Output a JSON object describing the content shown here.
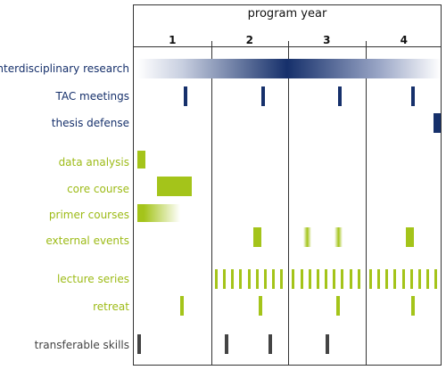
{
  "header": {
    "title": "program year",
    "years": [
      "1",
      "2",
      "3",
      "4"
    ]
  },
  "colors": {
    "navy": "#16306b",
    "green": "#a4c41a",
    "gray": "#444444"
  },
  "rows": [
    {
      "id": "interdisciplinary-research",
      "label": "interdisciplinary research",
      "group": "navy"
    },
    {
      "id": "tac-meetings",
      "label": "TAC meetings",
      "group": "navy"
    },
    {
      "id": "thesis-defense",
      "label": "thesis defense",
      "group": "navy"
    },
    {
      "id": "data-analysis",
      "label": "data analysis",
      "group": "green"
    },
    {
      "id": "core-course",
      "label": "core course",
      "group": "green"
    },
    {
      "id": "primer-courses",
      "label": "primer courses",
      "group": "green"
    },
    {
      "id": "external-events",
      "label": "external events",
      "group": "green"
    },
    {
      "id": "lecture-series",
      "label": "lecture series",
      "group": "green"
    },
    {
      "id": "retreat",
      "label": "retreat",
      "group": "green"
    },
    {
      "id": "transferable-skills",
      "label": "transferable skills",
      "group": "gray"
    }
  ],
  "activities": {
    "interdisciplinary-research": [
      {
        "start": 0.05,
        "end": 4.0,
        "style": "gradient",
        "peak": 2.0
      }
    ],
    "tac-meetings": [
      {
        "at": 0.65
      },
      {
        "at": 1.65
      },
      {
        "at": 2.65
      },
      {
        "at": 3.6
      }
    ],
    "thesis-defense": [
      {
        "start": 3.88,
        "end": 4.0
      }
    ],
    "data-analysis": [
      {
        "start": 0.05,
        "end": 0.15
      }
    ],
    "core-course": [
      {
        "start": 0.3,
        "end": 0.75
      }
    ],
    "primer-courses": [
      {
        "start": 0.05,
        "end": 0.6,
        "style": "fade-right"
      }
    ],
    "external-events": [
      {
        "start": 1.55,
        "end": 1.65
      },
      {
        "start": 2.2,
        "end": 2.3,
        "style": "fade-both"
      },
      {
        "start": 2.6,
        "end": 2.7,
        "style": "fade-both"
      },
      {
        "start": 3.53,
        "end": 3.63
      }
    ],
    "lecture-series": [
      {
        "start": 1.05,
        "end": 1.9,
        "style": "pulses",
        "count": 9
      },
      {
        "start": 2.05,
        "end": 2.9,
        "style": "pulses",
        "count": 9
      },
      {
        "start": 3.05,
        "end": 3.9,
        "style": "pulses",
        "count": 9
      }
    ],
    "retreat": [
      {
        "at": 0.6
      },
      {
        "at": 1.62
      },
      {
        "at": 2.62
      },
      {
        "at": 3.6
      }
    ],
    "transferable-skills": [
      {
        "at": 0.05
      },
      {
        "at": 1.18
      },
      {
        "at": 1.75
      },
      {
        "at": 2.48
      }
    ]
  }
}
